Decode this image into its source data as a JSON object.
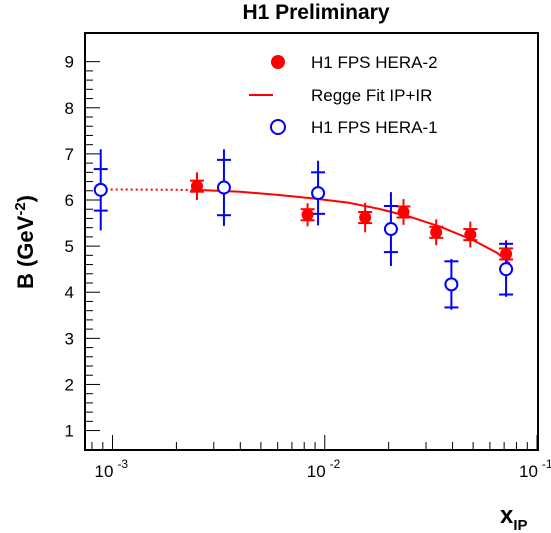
{
  "chart_data": {
    "type": "scatter",
    "title": "H1 Preliminary",
    "ylabel": {
      "main": "B (GeV",
      "sup": "-2",
      "close": ")"
    },
    "xlabel": {
      "main": "x",
      "sub": "IP"
    },
    "xscale": "log",
    "xlim": [
      0.00075,
      0.1
    ],
    "ylim": [
      0.6,
      9.6
    ],
    "yticks": [
      "1",
      "2",
      "3",
      "4",
      "5",
      "6",
      "7",
      "8",
      "9"
    ],
    "xticks": [
      {
        "base": "10",
        "exp": "-3"
      },
      {
        "base": "10",
        "exp": "-2"
      },
      {
        "base": "10",
        "exp": "-1"
      }
    ],
    "grid": false,
    "legend": {
      "placement": "top-right",
      "entries": [
        "H1 FPS HERA-2",
        "Regge Fit IP+IR",
        "H1 FPS HERA-1"
      ]
    },
    "series": [
      {
        "name": "H1 FPS HERA-2",
        "marker": "filled-circle",
        "color": "#ff0000",
        "points": [
          {
            "x": 0.0025,
            "y": 6.3,
            "stat": 0.12,
            "tot": 0.3
          },
          {
            "x": 0.0083,
            "y": 5.68,
            "stat": 0.12,
            "tot": 0.25
          },
          {
            "x": 0.0155,
            "y": 5.62,
            "stat": 0.12,
            "tot": 0.32
          },
          {
            "x": 0.0235,
            "y": 5.74,
            "stat": 0.12,
            "tot": 0.28
          },
          {
            "x": 0.0335,
            "y": 5.3,
            "stat": 0.12,
            "tot": 0.28
          },
          {
            "x": 0.0485,
            "y": 5.25,
            "stat": 0.12,
            "tot": 0.28
          },
          {
            "x": 0.0715,
            "y": 4.83,
            "stat": 0.12,
            "tot": 0.3
          }
        ]
      },
      {
        "name": "H1 FPS HERA-1",
        "marker": "open-circle",
        "color": "#0000ff",
        "points": [
          {
            "x": 0.00088,
            "y": 6.22,
            "stat": 0.45,
            "tot": 0.88
          },
          {
            "x": 0.00335,
            "y": 6.27,
            "stat": 0.6,
            "tot": 0.83
          },
          {
            "x": 0.0093,
            "y": 6.15,
            "stat": 0.45,
            "tot": 0.7
          },
          {
            "x": 0.0205,
            "y": 5.37,
            "stat": 0.5,
            "tot": 0.8
          },
          {
            "x": 0.0395,
            "y": 4.17,
            "stat": 0.5,
            "tot": 0.55
          },
          {
            "x": 0.0715,
            "y": 4.5,
            "stat": 0.55,
            "tot": 0.6
          }
        ]
      },
      {
        "name": "Regge Fit IP+IR",
        "line": "solid",
        "color": "#ff0000",
        "x": [
          0.0025,
          0.004,
          0.006,
          0.009,
          0.013,
          0.018,
          0.025,
          0.035,
          0.05,
          0.065,
          0.0745
        ],
        "y": [
          6.22,
          6.18,
          6.11,
          6.03,
          5.94,
          5.81,
          5.64,
          5.42,
          5.13,
          4.85,
          4.62
        ]
      },
      {
        "line": "dotted",
        "color": "#ff0000",
        "x": [
          0.00088,
          0.0025
        ],
        "y": [
          6.23,
          6.22
        ]
      }
    ]
  }
}
